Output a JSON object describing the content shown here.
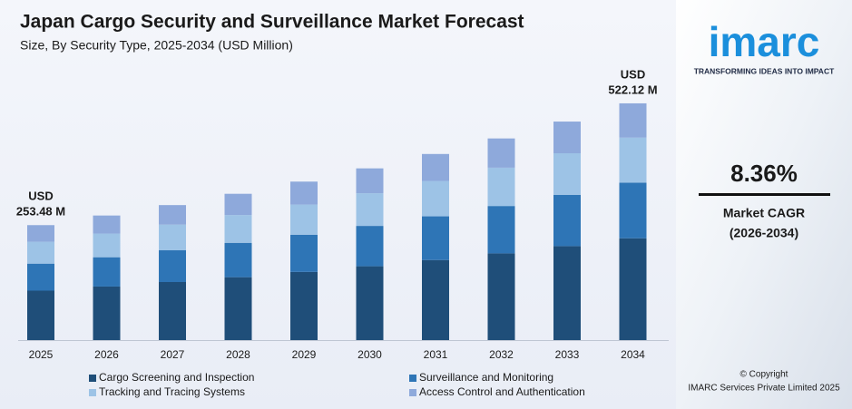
{
  "chart_data": {
    "type": "stacked_bar",
    "title": "Japan Cargo Security and Surveillance Market Forecast",
    "subtitle": "Size, By Security Type, 2025-2034 (USD Million)",
    "categories": [
      "2025",
      "2026",
      "2027",
      "2028",
      "2029",
      "2030",
      "2031",
      "2032",
      "2033",
      "2034"
    ],
    "series": [
      {
        "name": "Cargo Screening and Inspection",
        "color": "#1f4e79",
        "values": [
          109.0,
          118.1,
          128.0,
          138.7,
          150.3,
          162.8,
          176.5,
          191.2,
          207.2,
          224.5
        ]
      },
      {
        "name": "Surveillance and Monitoring",
        "color": "#2e75b6",
        "values": [
          59.6,
          64.6,
          70.0,
          75.8,
          82.1,
          89.0,
          96.4,
          104.5,
          113.2,
          122.7
        ]
      },
      {
        "name": "Tracking and Tracing Systems",
        "color": "#9dc3e6",
        "values": [
          48.2,
          52.2,
          56.6,
          61.3,
          66.4,
          72.0,
          78.0,
          84.5,
          91.6,
          99.2
        ]
      },
      {
        "name": "Access Control and Authentication",
        "color": "#8ea9db",
        "values": [
          36.7,
          39.8,
          43.1,
          46.8,
          50.7,
          54.9,
          59.5,
          64.5,
          69.9,
          75.7
        ]
      }
    ],
    "ylim": [
      0,
      560
    ],
    "annotations": [
      {
        "text": [
          "USD",
          "253.48 M"
        ]
      },
      {
        "text": [
          "USD",
          "522.12 M"
        ]
      }
    ]
  },
  "branding": {
    "logo": "imarc",
    "tagline": "TRANSFORMING IDEAS INTO IMPACT",
    "cagr_value": "8.36%",
    "cagr_label": "Market CAGR",
    "cagr_period": "(2026-2034)",
    "copyright": "© Copyright",
    "company": "IMARC Services Private Limited 2025"
  }
}
